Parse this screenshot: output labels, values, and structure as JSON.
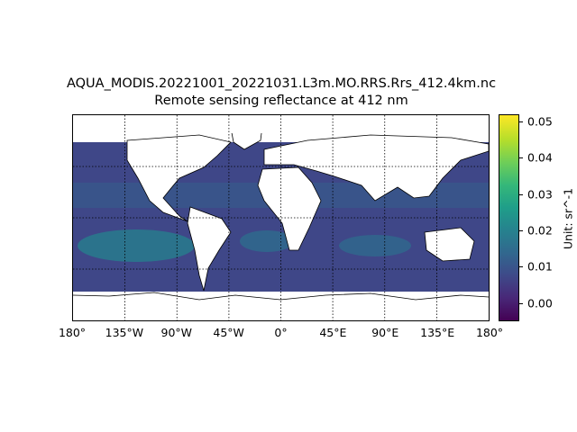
{
  "title": {
    "line1": "AQUA_MODIS.20221001_20221031.L3m.MO.RRS.Rrs_412.4km.nc",
    "line2": "Remote sensing reflectance at 412 nm"
  },
  "map": {
    "projection": "plate-carree",
    "lon_range": [
      -180,
      180
    ],
    "lat_range": [
      -90,
      90
    ],
    "gridlines": "dotted",
    "land_color": "#ffffff",
    "coastline_color": "#000000",
    "xtick_labels": [
      "180°",
      "135°W",
      "90°W",
      "45°W",
      "0°",
      "45°E",
      "90°E",
      "135°E",
      "180°"
    ],
    "xtick_lons": [
      -180,
      -135,
      -90,
      -45,
      0,
      45,
      90,
      135,
      180
    ]
  },
  "colorbar": {
    "colormap": "viridis",
    "range": [
      -0.005,
      0.052
    ],
    "ticks": [
      0.0,
      0.01,
      0.02,
      0.03,
      0.04,
      0.05
    ],
    "tick_labels": [
      "0.00",
      "0.01",
      "0.02",
      "0.03",
      "0.04",
      "0.05"
    ],
    "unit_label": "Unit: sr^-1"
  }
}
